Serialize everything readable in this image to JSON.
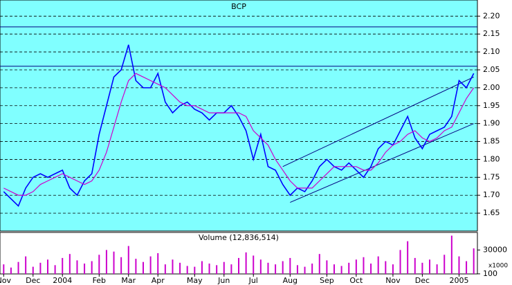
{
  "chart_data": [
    {
      "type": "line",
      "title": "BCP",
      "categories": [
        "Nov",
        null,
        null,
        null,
        "Dec",
        null,
        null,
        null,
        "2004",
        null,
        null,
        null,
        null,
        "Feb",
        null,
        null,
        null,
        "Mar",
        null,
        null,
        null,
        "Apr",
        null,
        null,
        null,
        null,
        "May",
        null,
        null,
        null,
        "Jun",
        null,
        null,
        null,
        "Jul",
        null,
        null,
        null,
        null,
        "Aug",
        null,
        null,
        null,
        null,
        "Sep",
        null,
        null,
        null,
        "Oct",
        null,
        null,
        null,
        null,
        "Nov",
        null,
        null,
        null,
        "Dec",
        null,
        null,
        null,
        null,
        "2005",
        null,
        null
      ],
      "series": [
        {
          "color": "#0000ff",
          "values": [
            1.71,
            1.69,
            1.67,
            1.72,
            1.75,
            1.76,
            1.75,
            1.76,
            1.77,
            1.72,
            1.7,
            1.74,
            1.76,
            1.87,
            1.95,
            2.03,
            2.05,
            2.12,
            2.02,
            2.0,
            2.0,
            2.04,
            1.96,
            1.93,
            1.95,
            1.96,
            1.94,
            1.93,
            1.91,
            1.93,
            1.93,
            1.95,
            1.92,
            1.88,
            1.8,
            1.87,
            1.78,
            1.77,
            1.73,
            1.7,
            1.72,
            1.71,
            1.74,
            1.78,
            1.8,
            1.78,
            1.77,
            1.79,
            1.77,
            1.75,
            1.78,
            1.83,
            1.85,
            1.84,
            1.88,
            1.92,
            1.86,
            1.83,
            1.87,
            1.88,
            1.89,
            1.92,
            2.02,
            2.0,
            2.04
          ]
        },
        {
          "color": "#cc00cc",
          "values": [
            1.72,
            1.71,
            1.7,
            1.7,
            1.71,
            1.73,
            1.74,
            1.75,
            1.76,
            1.75,
            1.74,
            1.73,
            1.74,
            1.77,
            1.82,
            1.89,
            1.96,
            2.02,
            2.04,
            2.03,
            2.02,
            2.01,
            2.0,
            1.98,
            1.96,
            1.95,
            1.95,
            1.94,
            1.93,
            1.93,
            1.93,
            1.93,
            1.93,
            1.92,
            1.88,
            1.86,
            1.84,
            1.8,
            1.77,
            1.74,
            1.72,
            1.72,
            1.72,
            1.74,
            1.76,
            1.78,
            1.78,
            1.78,
            1.78,
            1.77,
            1.77,
            1.79,
            1.82,
            1.84,
            1.85,
            1.87,
            1.88,
            1.86,
            1.85,
            1.86,
            1.88,
            1.89,
            1.93,
            1.97,
            2.0
          ]
        }
      ],
      "hlines": [
        2.17,
        2.06
      ],
      "trendlines": [
        {
          "x": [
            38,
            64
          ],
          "y": [
            1.78,
            2.03
          ]
        },
        {
          "x": [
            39,
            64
          ],
          "y": [
            1.68,
            1.9
          ]
        }
      ],
      "ylim": [
        1.6,
        2.245
      ],
      "yticks": [
        {
          "value": 1.65,
          "label": "1.65"
        },
        {
          "value": 1.7,
          "label": "1.70"
        },
        {
          "value": 1.75,
          "label": "1.75"
        },
        {
          "value": 1.8,
          "label": "1.80"
        },
        {
          "value": 1.85,
          "label": "1.85"
        },
        {
          "value": 1.9,
          "label": "1.90"
        },
        {
          "value": 1.95,
          "label": "1.95"
        },
        {
          "value": 2.0,
          "label": "2.00"
        },
        {
          "value": 2.05,
          "label": "2.05"
        },
        {
          "value": 2.1,
          "label": "2.10"
        },
        {
          "value": 2.15,
          "label": "2.15"
        },
        {
          "value": 2.2,
          "label": "2.20"
        }
      ],
      "grid": true
    },
    {
      "type": "bar",
      "title": "Volume (12,836,514)",
      "unit": "x1000",
      "color": "#cc00cc",
      "values": [
        12000,
        8000,
        15000,
        22000,
        9000,
        14000,
        18000,
        11000,
        20000,
        25000,
        17000,
        13000,
        16000,
        24000,
        30000,
        28000,
        21000,
        35000,
        19000,
        15000,
        22000,
        26000,
        12000,
        18000,
        14000,
        10000,
        9000,
        16000,
        13000,
        11000,
        15000,
        12000,
        20000,
        27000,
        23000,
        18000,
        14000,
        12000,
        16000,
        20000,
        11000,
        9000,
        13000,
        25000,
        17000,
        12000,
        10000,
        14000,
        18000,
        21000,
        13000,
        22000,
        16000,
        12000,
        30000,
        41000,
        20000,
        14000,
        18000,
        12000,
        24000,
        48000,
        22000,
        16000,
        32000
      ],
      "ylim": [
        0,
        52000
      ],
      "yticks": [
        100,
        30000
      ]
    }
  ]
}
